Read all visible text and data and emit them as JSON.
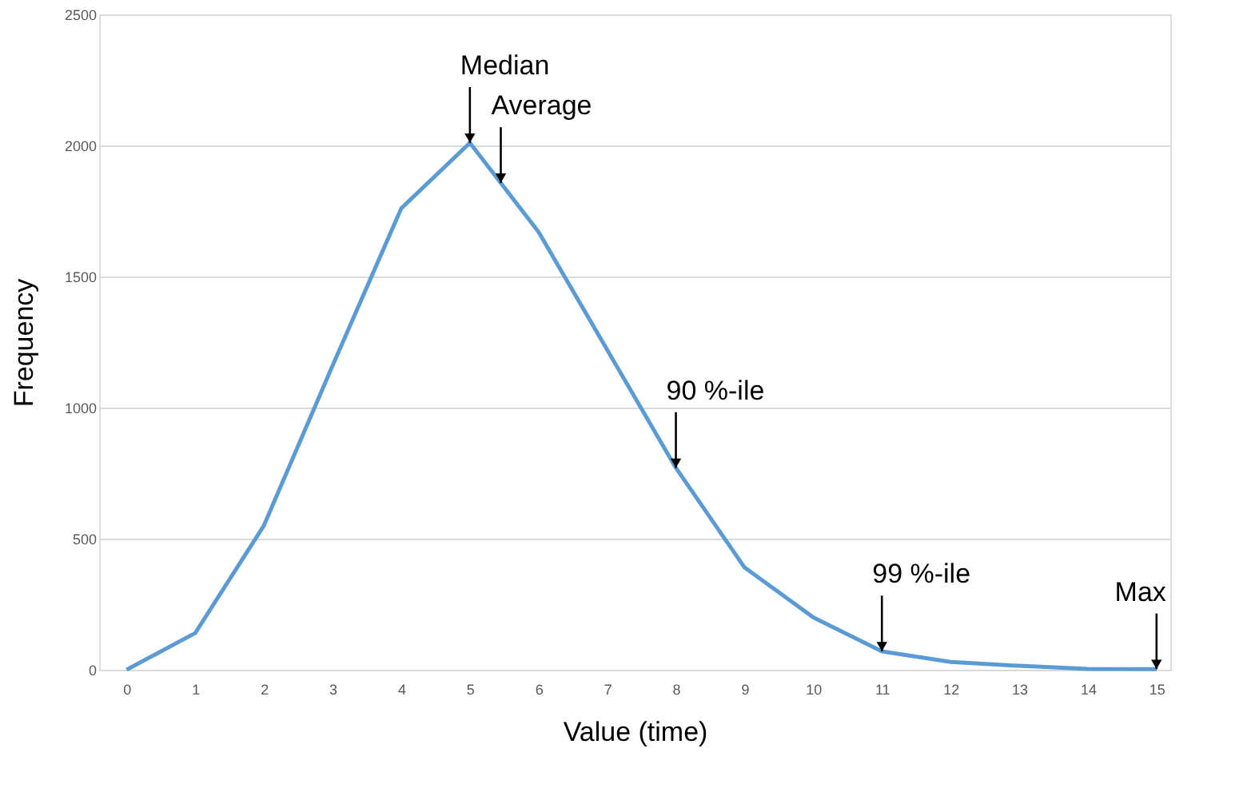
{
  "chart_data": {
    "type": "line",
    "xlabel": "Value (time)",
    "ylabel": "Frequency",
    "x": [
      0,
      1,
      2,
      3,
      4,
      5,
      6,
      7,
      8,
      9,
      10,
      11,
      12,
      13,
      14,
      15
    ],
    "series": [
      {
        "color": "#5b9bd5",
        "values": [
          0,
          140,
          550,
          1160,
          1760,
          2010,
          1670,
          1220,
          770,
          390,
          200,
          70,
          30,
          15,
          3,
          2
        ]
      }
    ],
    "xlim": [
      -0.4,
      15.2
    ],
    "xticks": [
      0,
      1,
      2,
      3,
      4,
      5,
      6,
      7,
      8,
      9,
      10,
      11,
      12,
      13,
      14,
      15
    ],
    "ylim": [
      0,
      2500
    ],
    "yticks": [
      0,
      500,
      1000,
      1500,
      2000,
      2500
    ],
    "grid": "y",
    "marker": "none",
    "line_style": "solid",
    "annotations": [
      {
        "text": "Median",
        "x": 5,
        "y": 2010
      },
      {
        "text": "Average",
        "x": 5.45,
        "y": 1857
      },
      {
        "text": "90 %-ile",
        "x": 8,
        "y": 770
      },
      {
        "text": "99 %-ile",
        "x": 11,
        "y": 70
      },
      {
        "text": "Max",
        "x": 15,
        "y": 2
      }
    ]
  }
}
